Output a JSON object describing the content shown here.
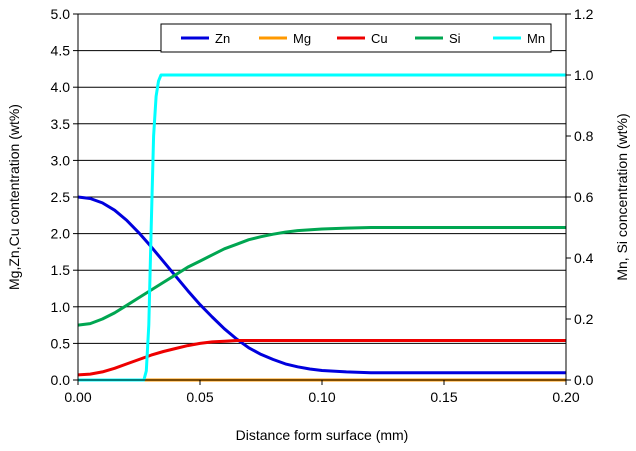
{
  "chart_data": {
    "type": "line",
    "title": "",
    "xlabel": "Distance form surface (mm)",
    "ylabel_left": "Mg,Zn,Cu contentration (wt%)",
    "ylabel_right": "Mn, Si concentration (wt%)",
    "xlim": [
      0,
      0.2
    ],
    "ylim_left": [
      0,
      5
    ],
    "ylim_right": [
      0,
      1.2
    ],
    "x_ticks": [
      "0.00",
      "0.05",
      "0.10",
      "0.15",
      "0.20"
    ],
    "y_ticks_left": [
      "0.0",
      "0.5",
      "1.0",
      "1.5",
      "2.0",
      "2.5",
      "3.0",
      "3.5",
      "4.0",
      "4.5",
      "5.0"
    ],
    "y_ticks_right": [
      "0.0",
      "0.2",
      "0.4",
      "0.6",
      "0.8",
      "1.0",
      "1.2"
    ],
    "grid": "horizontal",
    "legend_position": "top",
    "series": [
      {
        "name": "Zn",
        "axis": "left",
        "color": "#0000dd",
        "x": [
          0,
          0.005,
          0.01,
          0.015,
          0.02,
          0.025,
          0.03,
          0.035,
          0.04,
          0.045,
          0.05,
          0.055,
          0.06,
          0.065,
          0.07,
          0.075,
          0.08,
          0.085,
          0.09,
          0.095,
          0.1,
          0.11,
          0.12,
          0.13,
          0.14,
          0.15,
          0.16,
          0.17,
          0.18,
          0.19,
          0.2
        ],
        "y": [
          2.5,
          2.48,
          2.42,
          2.32,
          2.18,
          2.01,
          1.82,
          1.62,
          1.42,
          1.22,
          1.03,
          0.86,
          0.7,
          0.56,
          0.44,
          0.35,
          0.28,
          0.22,
          0.18,
          0.15,
          0.13,
          0.11,
          0.1,
          0.1,
          0.1,
          0.1,
          0.1,
          0.1,
          0.1,
          0.1,
          0.1
        ]
      },
      {
        "name": "Mg",
        "axis": "left",
        "color": "#ff9900",
        "x": [
          0,
          0.2
        ],
        "y": [
          0.0,
          0.0
        ]
      },
      {
        "name": "Cu",
        "axis": "left",
        "color": "#ee0000",
        "x": [
          0,
          0.005,
          0.01,
          0.015,
          0.02,
          0.025,
          0.03,
          0.035,
          0.04,
          0.045,
          0.05,
          0.055,
          0.06,
          0.065,
          0.07,
          0.075,
          0.08,
          0.09,
          0.1,
          0.12,
          0.15,
          0.2
        ],
        "y": [
          0.07,
          0.08,
          0.11,
          0.16,
          0.22,
          0.28,
          0.34,
          0.39,
          0.43,
          0.47,
          0.5,
          0.52,
          0.53,
          0.54,
          0.54,
          0.54,
          0.54,
          0.54,
          0.54,
          0.54,
          0.54,
          0.54
        ]
      },
      {
        "name": "Si",
        "axis": "right",
        "color": "#00a651",
        "x": [
          0,
          0.005,
          0.01,
          0.015,
          0.02,
          0.025,
          0.03,
          0.035,
          0.04,
          0.045,
          0.05,
          0.055,
          0.06,
          0.065,
          0.07,
          0.075,
          0.08,
          0.085,
          0.09,
          0.1,
          0.11,
          0.12,
          0.13,
          0.15,
          0.2
        ],
        "y": [
          0.18,
          0.185,
          0.2,
          0.22,
          0.245,
          0.27,
          0.295,
          0.32,
          0.345,
          0.37,
          0.39,
          0.41,
          0.43,
          0.445,
          0.46,
          0.47,
          0.478,
          0.485,
          0.49,
          0.495,
          0.498,
          0.5,
          0.5,
          0.5,
          0.5
        ]
      },
      {
        "name": "Mn",
        "axis": "right",
        "color": "#00ffff",
        "x": [
          0,
          0.027,
          0.028,
          0.029,
          0.03,
          0.031,
          0.032,
          0.033,
          0.034,
          0.2
        ],
        "y": [
          0.0,
          0.0,
          0.03,
          0.18,
          0.5,
          0.8,
          0.93,
          0.98,
          1.0,
          1.0
        ]
      }
    ]
  }
}
